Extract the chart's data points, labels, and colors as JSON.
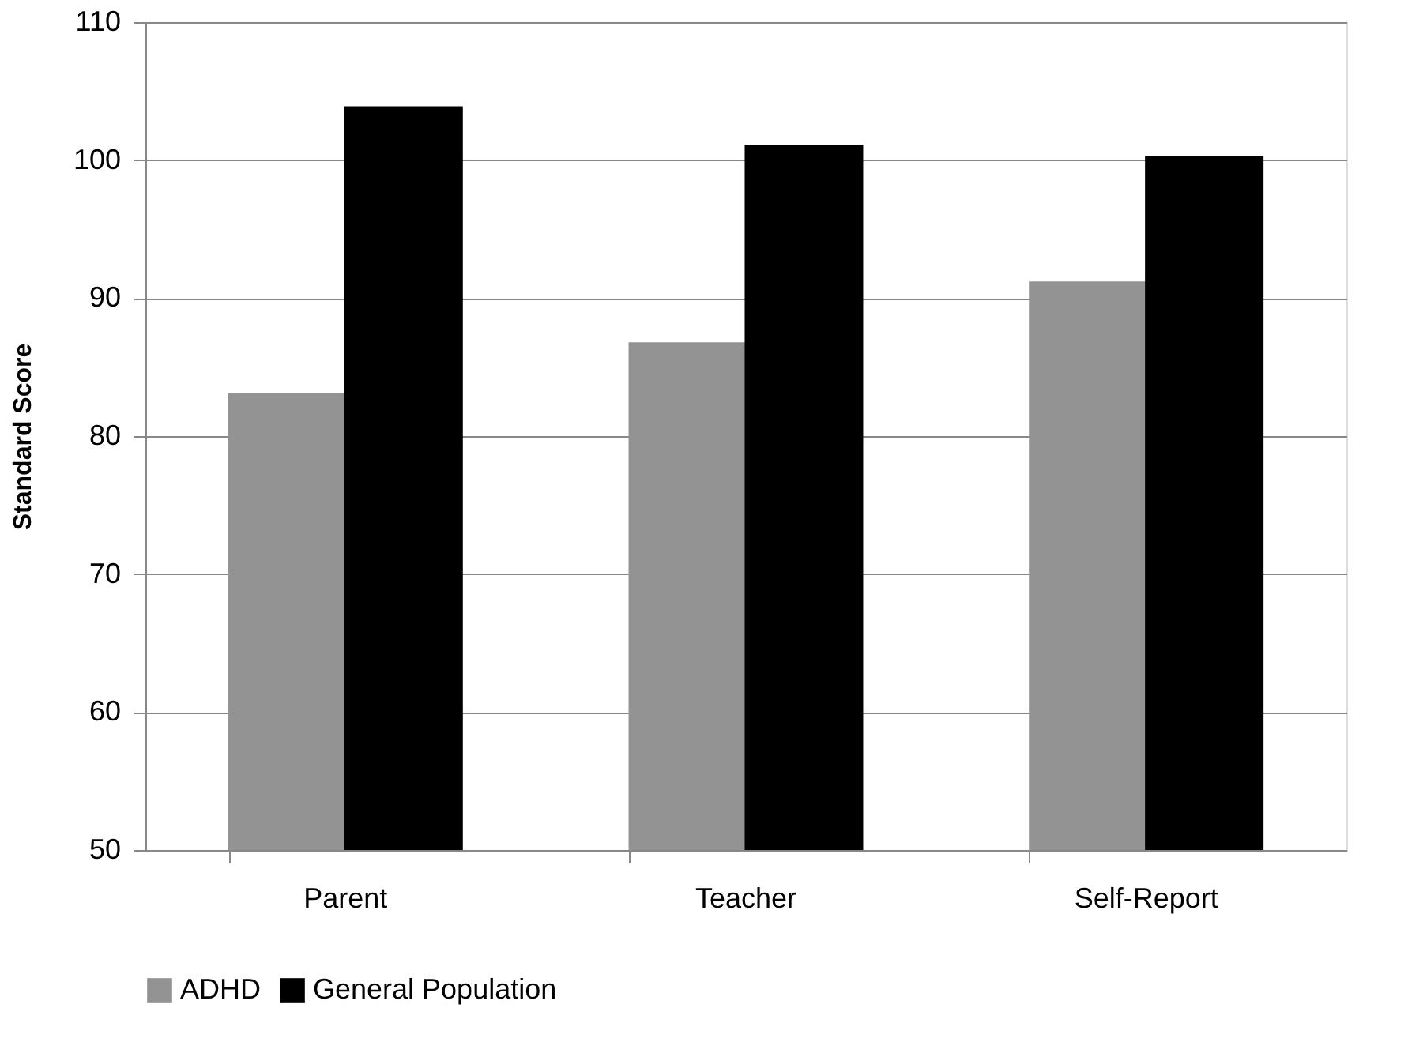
{
  "chart_data": {
    "type": "bar",
    "ylabel": "Standard Score",
    "categories": [
      "Parent",
      "Teacher",
      "Self-Report"
    ],
    "series": [
      {
        "name": "ADHD",
        "color": "#939393",
        "values": [
          83.1,
          86.8,
          91.2
        ]
      },
      {
        "name": "General Population",
        "color": "#000000",
        "values": [
          103.9,
          101.1,
          100.3
        ]
      }
    ],
    "ylim": [
      50,
      110
    ],
    "yticks": [
      50,
      60,
      70,
      80,
      90,
      100,
      110
    ],
    "grid": "y",
    "legend": "bottom"
  }
}
